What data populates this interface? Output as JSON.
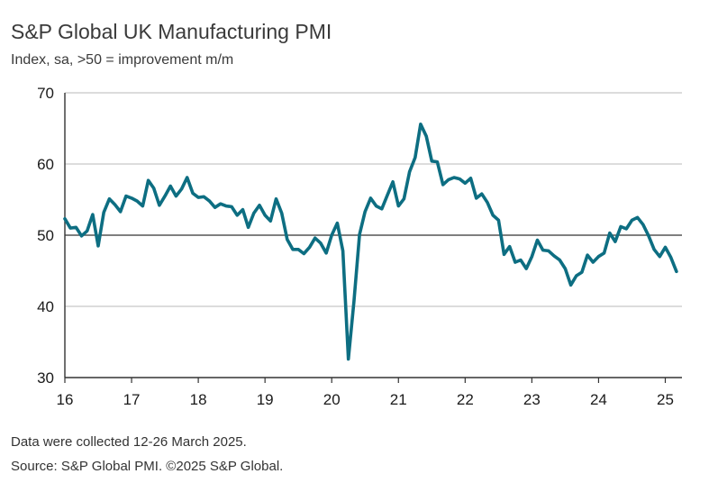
{
  "chart_data": {
    "type": "line",
    "title": "S&P Global UK Manufacturing PMI",
    "subtitle": "Index, sa, >50 = improvement m/m",
    "xlabel": "",
    "ylabel": "",
    "ylim": [
      30,
      70
    ],
    "xlim": [
      2016.0,
      2025.25
    ],
    "yticks": [
      30,
      40,
      50,
      60,
      70
    ],
    "xticks": [
      {
        "value": 2016,
        "label": "16"
      },
      {
        "value": 2017,
        "label": "17"
      },
      {
        "value": 2018,
        "label": "18"
      },
      {
        "value": 2019,
        "label": "19"
      },
      {
        "value": 2020,
        "label": "20"
      },
      {
        "value": 2021,
        "label": "21"
      },
      {
        "value": 2022,
        "label": "22"
      },
      {
        "value": 2023,
        "label": "23"
      },
      {
        "value": 2024,
        "label": "24"
      },
      {
        "value": 2025,
        "label": "25"
      }
    ],
    "grid": "horizontal",
    "reference_line": 50,
    "colors": {
      "line": "#0d6e82",
      "grid": "#c8c8c8",
      "reference": "#555555",
      "axis": "#333333"
    },
    "series": [
      {
        "name": "",
        "x": [
          2016.0,
          2016.083,
          2016.167,
          2016.25,
          2016.333,
          2016.417,
          2016.5,
          2016.583,
          2016.667,
          2016.75,
          2016.833,
          2016.917,
          2017.0,
          2017.083,
          2017.167,
          2017.25,
          2017.333,
          2017.417,
          2017.5,
          2017.583,
          2017.667,
          2017.75,
          2017.833,
          2017.917,
          2018.0,
          2018.083,
          2018.167,
          2018.25,
          2018.333,
          2018.417,
          2018.5,
          2018.583,
          2018.667,
          2018.75,
          2018.833,
          2018.917,
          2019.0,
          2019.083,
          2019.167,
          2019.25,
          2019.333,
          2019.417,
          2019.5,
          2019.583,
          2019.667,
          2019.75,
          2019.833,
          2019.917,
          2020.0,
          2020.083,
          2020.167,
          2020.25,
          2020.333,
          2020.417,
          2020.5,
          2020.583,
          2020.667,
          2020.75,
          2020.833,
          2020.917,
          2021.0,
          2021.083,
          2021.167,
          2021.25,
          2021.333,
          2021.417,
          2021.5,
          2021.583,
          2021.667,
          2021.75,
          2021.833,
          2021.917,
          2022.0,
          2022.083,
          2022.167,
          2022.25,
          2022.333,
          2022.417,
          2022.5,
          2022.583,
          2022.667,
          2022.75,
          2022.833,
          2022.917,
          2023.0,
          2023.083,
          2023.167,
          2023.25,
          2023.333,
          2023.417,
          2023.5,
          2023.583,
          2023.667,
          2023.75,
          2023.833,
          2023.917,
          2024.0,
          2024.083,
          2024.167,
          2024.25,
          2024.333,
          2024.417,
          2024.5,
          2024.583,
          2024.667,
          2024.75,
          2024.833,
          2024.917,
          2025.0,
          2025.083,
          2025.167
        ],
        "values": [
          52.3,
          51.0,
          51.1,
          49.9,
          50.6,
          52.9,
          48.5,
          53.2,
          55.1,
          54.3,
          53.3,
          55.5,
          55.2,
          54.8,
          54.1,
          57.7,
          56.6,
          54.2,
          55.5,
          56.9,
          55.5,
          56.5,
          58.1,
          55.9,
          55.3,
          55.4,
          54.8,
          53.9,
          54.4,
          54.1,
          54.0,
          52.8,
          53.6,
          51.1,
          53.1,
          54.2,
          52.8,
          52.0,
          55.1,
          53.1,
          49.4,
          48.0,
          48.0,
          47.4,
          48.3,
          49.6,
          48.9,
          47.5,
          50.0,
          51.7,
          47.8,
          32.6,
          40.7,
          50.1,
          53.3,
          55.2,
          54.1,
          53.7,
          55.6,
          57.5,
          54.1,
          55.1,
          58.9,
          60.9,
          65.6,
          63.9,
          60.4,
          60.3,
          57.1,
          57.8,
          58.1,
          57.9,
          57.3,
          58.0,
          55.2,
          55.8,
          54.6,
          52.8,
          52.1,
          47.3,
          48.4,
          46.2,
          46.5,
          45.3,
          47.0,
          49.3,
          47.9,
          47.8,
          47.1,
          46.5,
          45.3,
          43.0,
          44.3,
          44.8,
          47.2,
          46.2,
          47.0,
          47.5,
          50.3,
          49.1,
          51.2,
          50.9,
          52.1,
          52.5,
          51.5,
          49.9,
          48.0,
          47.0,
          48.3,
          46.9,
          44.9
        ]
      }
    ]
  },
  "footnotes": {
    "note": "Data were collected 12-26 March 2025.",
    "source": "Source: S&P Global PMI. ©2025 S&P Global."
  }
}
